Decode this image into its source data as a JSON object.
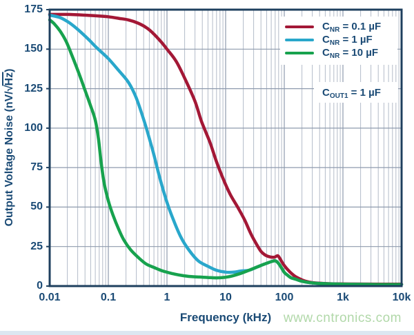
{
  "watermark": "www.cntronics.com",
  "colors": {
    "axis_text": "#1a4a75",
    "frame": "#1e3f5e",
    "grid_major": "#8e9aad",
    "grid_minor": "#b3bbc8",
    "watermark": "#b1d8a9",
    "bottom_strip": "#dce7f1",
    "background": "#ffffff"
  },
  "chart_data": {
    "type": "line",
    "title": "",
    "xlabel": "Frequency (kHz)",
    "ylabel": "Output Voltage Noise (nV/√Hz)",
    "ylabel_parts": {
      "prefix": "Output Voltage Noise (nV/",
      "sqrt": "√",
      "radicand": "Hz",
      "suffix": ")"
    },
    "x_scale": "log",
    "xlim": [
      0.01,
      10000
    ],
    "ylim": [
      0,
      175
    ],
    "grid": true,
    "legend_position": "top-right",
    "x_ticks": [
      {
        "v": 0.01,
        "label": "0.01"
      },
      {
        "v": 0.1,
        "label": "0.1"
      },
      {
        "v": 1,
        "label": "1"
      },
      {
        "v": 10,
        "label": "10"
      },
      {
        "v": 100,
        "label": "100"
      },
      {
        "v": 1000,
        "label": "1k"
      },
      {
        "v": 10000,
        "label": "10k"
      }
    ],
    "y_ticks": [
      {
        "v": 0,
        "label": "0"
      },
      {
        "v": 25,
        "label": "25"
      },
      {
        "v": 50,
        "label": "50"
      },
      {
        "v": 75,
        "label": "75"
      },
      {
        "v": 100,
        "label": "100"
      },
      {
        "v": 125,
        "label": "125"
      },
      {
        "v": 150,
        "label": "150"
      },
      {
        "v": 175,
        "label": "175"
      }
    ],
    "note": {
      "sym": "C",
      "sub": "OUT1",
      "rest": " = 1 µF"
    },
    "series": [
      {
        "name": "CNR = 0.1 µF",
        "label_sym": "C",
        "label_sub": "NR",
        "label_rest": " = 0.1 µF",
        "color": "#a31836",
        "points": [
          [
            0.01,
            172
          ],
          [
            0.02,
            172
          ],
          [
            0.04,
            171.5
          ],
          [
            0.07,
            171
          ],
          [
            0.1,
            170.5
          ],
          [
            0.15,
            169.5
          ],
          [
            0.22,
            168.5
          ],
          [
            0.32,
            166.5
          ],
          [
            0.45,
            163.5
          ],
          [
            0.6,
            159.5
          ],
          [
            0.82,
            154
          ],
          [
            1,
            150
          ],
          [
            1.45,
            142
          ],
          [
            2.1,
            130
          ],
          [
            3,
            117
          ],
          [
            3.9,
            104
          ],
          [
            5.4,
            91
          ],
          [
            7.1,
            78
          ],
          [
            9.3,
            67
          ],
          [
            12,
            58
          ],
          [
            16,
            50
          ],
          [
            21,
            42
          ],
          [
            27,
            33
          ],
          [
            33,
            27
          ],
          [
            40,
            22
          ],
          [
            48,
            19.5
          ],
          [
            58,
            18.4
          ],
          [
            68,
            18.3
          ],
          [
            77,
            19.2
          ],
          [
            84,
            17.5
          ],
          [
            92,
            15
          ],
          [
            100,
            13
          ],
          [
            115,
            10.3
          ],
          [
            130,
            8.3
          ],
          [
            155,
            6
          ],
          [
            190,
            4.3
          ],
          [
            230,
            3.1
          ],
          [
            300,
            2.2
          ],
          [
            450,
            1.7
          ],
          [
            700,
            1.4
          ],
          [
            1500,
            1.3
          ],
          [
            4000,
            1.2
          ],
          [
            10000,
            1.2
          ]
        ]
      },
      {
        "name": "CNR = 1 µF",
        "label_sym": "C",
        "label_sub": "NR",
        "label_rest": " = 1 µF",
        "color": "#29a7cb",
        "points": [
          [
            0.01,
            171.5
          ],
          [
            0.015,
            170
          ],
          [
            0.021,
            167
          ],
          [
            0.03,
            162.5
          ],
          [
            0.045,
            156.5
          ],
          [
            0.063,
            151
          ],
          [
            0.1,
            144
          ],
          [
            0.15,
            136.5
          ],
          [
            0.22,
            129
          ],
          [
            0.3,
            119
          ],
          [
            0.42,
            103
          ],
          [
            0.58,
            85
          ],
          [
            0.76,
            68
          ],
          [
            1,
            53
          ],
          [
            1.3,
            41.5
          ],
          [
            1.75,
            30.5
          ],
          [
            2.4,
            22.5
          ],
          [
            3.4,
            16
          ],
          [
            5,
            12.5
          ],
          [
            7,
            10
          ],
          [
            10,
            8.8
          ],
          [
            14,
            8.8
          ],
          [
            18,
            9.5
          ],
          [
            25,
            10
          ],
          [
            34,
            12
          ],
          [
            45,
            13.8
          ],
          [
            55,
            15
          ],
          [
            63,
            15.7
          ],
          [
            70,
            16
          ],
          [
            78,
            14.8
          ],
          [
            88,
            12
          ],
          [
            100,
            8.7
          ],
          [
            115,
            6.7
          ],
          [
            130,
            5.3
          ],
          [
            160,
            4.2
          ],
          [
            200,
            3
          ],
          [
            280,
            2.1
          ],
          [
            400,
            1.6
          ],
          [
            700,
            1.3
          ],
          [
            1500,
            1.1
          ],
          [
            4000,
            1
          ],
          [
            10000,
            1
          ]
        ]
      },
      {
        "name": "CNR = 10 µF",
        "label_sym": "C",
        "label_sub": "NR",
        "label_rest": " = 10 µF",
        "color": "#17a24e",
        "points": [
          [
            0.01,
            168.5
          ],
          [
            0.012,
            166
          ],
          [
            0.015,
            161.5
          ],
          [
            0.019,
            155
          ],
          [
            0.024,
            146
          ],
          [
            0.032,
            134
          ],
          [
            0.04,
            124
          ],
          [
            0.05,
            114
          ],
          [
            0.06,
            105
          ],
          [
            0.068,
            93
          ],
          [
            0.075,
            79
          ],
          [
            0.085,
            65
          ],
          [
            0.1,
            54
          ],
          [
            0.12,
            45
          ],
          [
            0.15,
            36
          ],
          [
            0.185,
            29
          ],
          [
            0.24,
            23
          ],
          [
            0.32,
            18.3
          ],
          [
            0.44,
            14
          ],
          [
            0.6,
            11.8
          ],
          [
            0.82,
            9.7
          ],
          [
            1.2,
            8
          ],
          [
            1.8,
            6.7
          ],
          [
            2.6,
            6
          ],
          [
            3.6,
            5.7
          ],
          [
            5,
            5.4
          ],
          [
            7,
            5.2
          ],
          [
            10,
            5.6
          ],
          [
            13,
            6.4
          ],
          [
            18,
            8
          ],
          [
            25,
            10
          ],
          [
            34,
            12
          ],
          [
            45,
            13.8
          ],
          [
            55,
            15
          ],
          [
            63,
            15.7
          ],
          [
            70,
            16
          ],
          [
            78,
            14.8
          ],
          [
            88,
            12
          ],
          [
            100,
            8.7
          ],
          [
            115,
            6.7
          ],
          [
            130,
            5.3
          ],
          [
            160,
            4.2
          ],
          [
            200,
            3
          ],
          [
            280,
            2.1
          ],
          [
            400,
            1.6
          ],
          [
            700,
            1.3
          ],
          [
            1500,
            1.1
          ],
          [
            4000,
            1
          ],
          [
            10000,
            1
          ]
        ]
      }
    ]
  }
}
